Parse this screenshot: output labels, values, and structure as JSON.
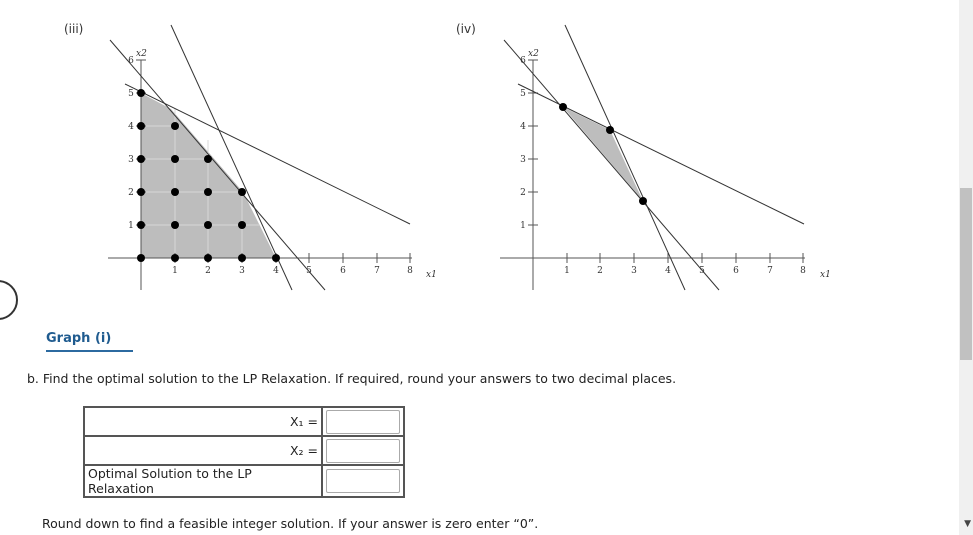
{
  "graphs": [
    {
      "label": "(iii)",
      "x_ticks": [
        "1",
        "2",
        "3",
        "4",
        "5",
        "6",
        "7",
        "8"
      ],
      "y_ticks": [
        "1",
        "2",
        "3",
        "4",
        "5",
        "6"
      ],
      "x_axis_label": "x1",
      "y_axis_label": "x2"
    },
    {
      "label": "(iv)",
      "x_ticks": [
        "1",
        "2",
        "3",
        "4",
        "5",
        "6",
        "7",
        "8"
      ],
      "y_ticks": [
        "1",
        "2",
        "3",
        "4",
        "5",
        "6"
      ],
      "x_axis_label": "x1",
      "y_axis_label": "x2"
    }
  ],
  "graph_link": {
    "label": "Graph (i)"
  },
  "question": {
    "text": "b. Find the optimal solution to the LP Relaxation. If required, round your answers to two decimal places."
  },
  "answer_table": {
    "rows": [
      {
        "label": "X₁ =",
        "value": ""
      },
      {
        "label": "X₂ =",
        "value": ""
      },
      {
        "label": "Optimal Solution to the LP Relaxation",
        "value": ""
      }
    ]
  },
  "instruction": {
    "text": "Round down to find a feasible integer solution. If your answer is zero enter “0”."
  }
}
